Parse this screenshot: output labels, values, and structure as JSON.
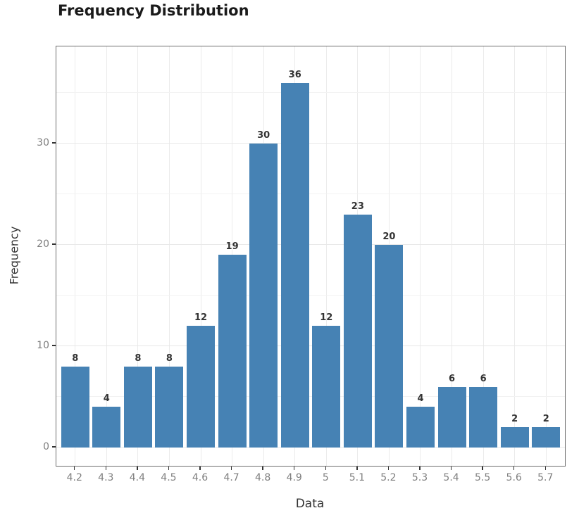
{
  "chart_data": {
    "type": "bar",
    "title": "Frequency Distribution",
    "xlabel": "Data",
    "ylabel": "Frequency",
    "categories": [
      "4.2",
      "4.3",
      "4.4",
      "4.5",
      "4.6",
      "4.7",
      "4.8",
      "4.9",
      "5",
      "5.1",
      "5.2",
      "5.3",
      "5.4",
      "5.5",
      "5.6",
      "5.7"
    ],
    "values": [
      8,
      4,
      8,
      8,
      12,
      19,
      30,
      36,
      12,
      23,
      20,
      4,
      6,
      6,
      2,
      2
    ],
    "y_ticks": [
      0,
      10,
      20,
      30
    ],
    "y_minor_ticks": [
      5,
      15,
      25,
      35
    ],
    "ylim": [
      -1.8,
      39.6
    ],
    "grid": "on",
    "legend_position": "none",
    "value_labels_shown": true,
    "colors": {
      "bar_fill": "#4682b4",
      "panel_border": "#6e6e6e",
      "grid_major": "#e8e8e8",
      "grid_minor": "#f2f2f2",
      "tick_label": "#7f7f7f",
      "axis_title": "#333333",
      "value_label": "#333333",
      "chart_title": "#1a1a1a",
      "tick_mark": "#333333"
    }
  }
}
